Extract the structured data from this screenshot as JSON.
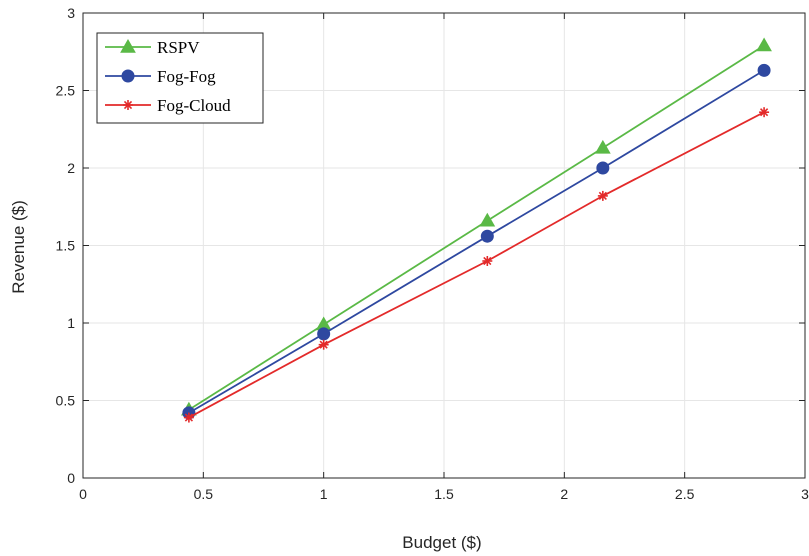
{
  "chart_data": {
    "type": "line",
    "title": "",
    "xlabel": "Budget ($)",
    "ylabel": "Revenue ($)",
    "xlim": [
      0,
      3
    ],
    "ylim": [
      0,
      3
    ],
    "xticks": [
      0,
      0.5,
      1,
      1.5,
      2,
      2.5,
      3
    ],
    "yticks": [
      0,
      0.5,
      1,
      1.5,
      2,
      2.5,
      3
    ],
    "xtick_labels": [
      "0",
      "0.5",
      "1",
      "1.5",
      "2",
      "2.5",
      "3"
    ],
    "ytick_labels": [
      "0",
      "0.5",
      "1",
      "1.5",
      "2",
      "2.5",
      "3"
    ],
    "grid": true,
    "legend_position": "top-left",
    "x": [
      0.44,
      1.0,
      1.68,
      2.16,
      2.83
    ],
    "series": [
      {
        "name": "RSPV",
        "values": [
          0.44,
          0.99,
          1.66,
          2.13,
          2.79
        ],
        "color": "#5ab946",
        "marker": "triangle"
      },
      {
        "name": "Fog-Fog",
        "values": [
          0.42,
          0.93,
          1.56,
          2.0,
          2.63
        ],
        "color": "#2e48a0",
        "marker": "circle"
      },
      {
        "name": "Fog-Cloud",
        "values": [
          0.39,
          0.86,
          1.4,
          1.82,
          2.36
        ],
        "color": "#e32a2a",
        "marker": "asterisk"
      }
    ]
  }
}
